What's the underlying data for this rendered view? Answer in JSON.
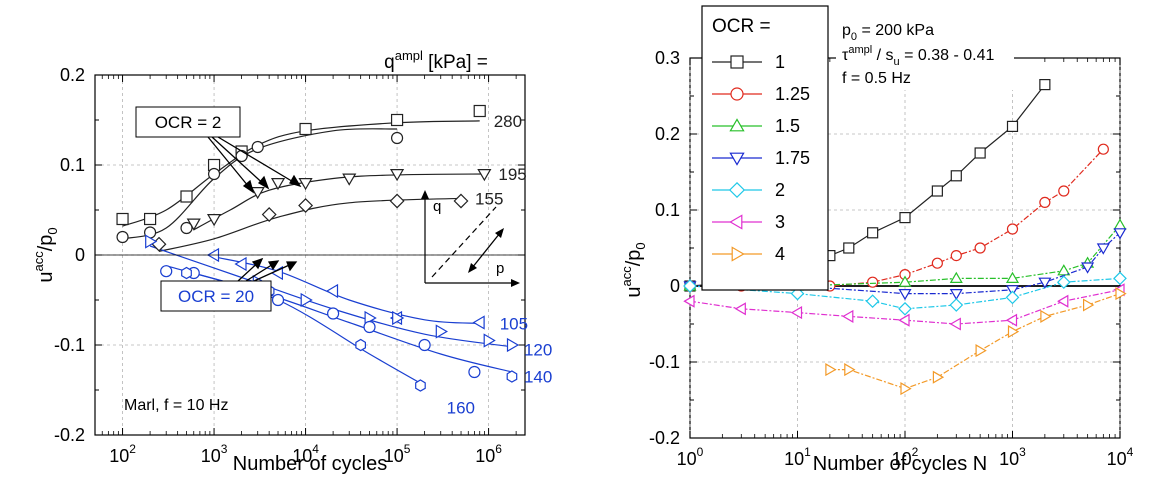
{
  "chart_data": [
    {
      "type": "scatter",
      "x_scale": "log",
      "xlim": [
        50,
        2500000
      ],
      "ylim": [
        -0.2,
        0.2
      ],
      "x_ticks": [
        100,
        1000,
        10000,
        100000,
        1000000
      ],
      "y_ticks": [
        -0.2,
        -0.1,
        0,
        0.1,
        0.2
      ],
      "x_tick_labels": [
        "10",
        "10",
        "10",
        "10",
        "10"
      ],
      "x_tick_exponents": [
        "2",
        "3",
        "4",
        "5",
        "6"
      ],
      "y_tick_labels": [
        "-0.2",
        "-0.1",
        "0",
        "0.1",
        "0.2"
      ],
      "grid": true,
      "xlabel": "Number of cycles",
      "ylabel_main": "u",
      "ylabel_sup": "acc",
      "ylabel_slash": "/p",
      "ylabel_sub": "0",
      "legend_title_main": "q",
      "legend_title_sup": "ampl",
      "legend_title_rest": " [kPa] =",
      "annotation_ocr2": "OCR = 2",
      "annotation_ocr20": "OCR = 20",
      "annotation_material": "Marl, f = 10 Hz",
      "inset_q": "q",
      "inset_p": "p",
      "series": [
        {
          "label": "280",
          "marker": "square",
          "color": "#222222",
          "label_color": "#222222",
          "points": [
            [
              100,
              0.04
            ],
            [
              200,
              0.04
            ],
            [
              500,
              0.065
            ],
            [
              1000,
              0.1
            ],
            [
              2000,
              0.115
            ],
            [
              10000,
              0.14
            ],
            [
              100000,
              0.15
            ],
            [
              800000,
              0.16
            ]
          ],
          "fit": [
            [
              100,
              0.032
            ],
            [
              300,
              0.05
            ],
            [
              1000,
              0.09
            ],
            [
              3000,
              0.122
            ],
            [
              10000,
              0.138
            ],
            [
              100000,
              0.147
            ],
            [
              800000,
              0.149
            ]
          ]
        },
        {
          "label": "195",
          "marker": "triangle-down",
          "color": "#222222",
          "label_color": "#222222",
          "points": [
            [
              600,
              0.035
            ],
            [
              1000,
              0.04
            ],
            [
              3000,
              0.07
            ],
            [
              5000,
              0.08
            ],
            [
              10000,
              0.08
            ],
            [
              30000,
              0.085
            ],
            [
              100000,
              0.09
            ],
            [
              900000,
              0.09
            ]
          ],
          "fit": [
            [
              600,
              0.028
            ],
            [
              1500,
              0.05
            ],
            [
              4000,
              0.072
            ],
            [
              20000,
              0.085
            ],
            [
              100000,
              0.089
            ],
            [
              900000,
              0.09
            ]
          ]
        },
        {
          "label": "155",
          "marker": "diamond",
          "color": "#222222",
          "label_color": "#222222",
          "points": [
            [
              250,
              0.012
            ],
            [
              4000,
              0.045
            ],
            [
              10000,
              0.055
            ],
            [
              100000,
              0.06
            ],
            [
              500000,
              0.06
            ]
          ],
          "fit": [
            [
              250,
              0.004
            ],
            [
              1000,
              0.018
            ],
            [
              5000,
              0.042
            ],
            [
              30000,
              0.058
            ],
            [
              500000,
              0.063
            ]
          ]
        },
        {
          "label": "",
          "marker": "circle",
          "color": "#222222",
          "label_color": "#222222",
          "points": [
            [
              100,
              0.02
            ],
            [
              200,
              0.025
            ],
            [
              500,
              0.03
            ],
            [
              1000,
              0.09
            ],
            [
              2000,
              0.11
            ],
            [
              3000,
              0.12
            ],
            [
              100000,
              0.13
            ]
          ],
          "fit": [
            [
              100,
              0.018
            ],
            [
              300,
              0.03
            ],
            [
              1000,
              0.085
            ],
            [
              3000,
              0.118
            ],
            [
              20000,
              0.138
            ],
            [
              100000,
              0.14
            ]
          ]
        },
        {
          "label": "105",
          "marker": "triangle-left",
          "color": "#1a3fd1",
          "label_color": "#1a3fd1",
          "points": [
            [
              1000,
              0
            ],
            [
              2000,
              -0.01
            ],
            [
              5000,
              -0.02
            ],
            [
              20000,
              -0.04
            ],
            [
              100000,
              -0.07
            ],
            [
              800000,
              -0.075
            ]
          ],
          "fit": [
            [
              1000,
              -0.002
            ],
            [
              5000,
              -0.018
            ],
            [
              30000,
              -0.05
            ],
            [
              200000,
              -0.072
            ],
            [
              800000,
              -0.076
            ]
          ]
        },
        {
          "label": "120",
          "marker": "triangle-right",
          "color": "#1a3fd1",
          "label_color": "#1a3fd1",
          "points": [
            [
              200,
              0.015
            ],
            [
              3000,
              -0.03
            ],
            [
              10000,
              -0.05
            ],
            [
              50000,
              -0.07
            ],
            [
              100000,
              -0.07
            ],
            [
              300000,
              -0.085
            ],
            [
              1000000,
              -0.095
            ],
            [
              1800000,
              -0.1
            ]
          ],
          "fit": [
            [
              200,
              0.01
            ],
            [
              2000,
              -0.025
            ],
            [
              20000,
              -0.06
            ],
            [
              200000,
              -0.088
            ],
            [
              1800000,
              -0.102
            ]
          ]
        },
        {
          "label": "140",
          "marker": "circle",
          "color": "#1a3fd1",
          "label_color": "#1a3fd1",
          "points": [
            [
              300,
              -0.018
            ],
            [
              600,
              -0.02
            ],
            [
              2000,
              -0.035
            ],
            [
              5000,
              -0.05
            ],
            [
              20000,
              -0.065
            ],
            [
              50000,
              -0.08
            ],
            [
              200000,
              -0.1
            ],
            [
              700000,
              -0.13
            ]
          ],
          "fit": [
            [
              300,
              -0.012
            ],
            [
              3000,
              -0.04
            ],
            [
              30000,
              -0.075
            ],
            [
              300000,
              -0.11
            ],
            [
              1800000,
              -0.13
            ]
          ]
        },
        {
          "label": "160",
          "marker": "hexagon",
          "color": "#1a3fd1",
          "label_color": "#1a3fd1",
          "points": [
            [
              500,
              -0.02
            ],
            [
              4000,
              -0.04
            ],
            [
              40000,
              -0.1
            ],
            [
              180000,
              -0.145
            ],
            [
              1800000,
              -0.135
            ]
          ],
          "fit": [
            [
              500,
              -0.018
            ],
            [
              5000,
              -0.05
            ],
            [
              50000,
              -0.11
            ],
            [
              200000,
              -0.145
            ]
          ]
        }
      ]
    },
    {
      "type": "line",
      "x_scale": "log",
      "xlim": [
        1,
        10000
      ],
      "ylim": [
        -0.2,
        0.3
      ],
      "x_ticks": [
        1,
        10,
        100,
        1000,
        10000
      ],
      "y_ticks": [
        -0.2,
        -0.1,
        0,
        0.1,
        0.2,
        0.3
      ],
      "x_tick_labels": [
        "10",
        "10",
        "10",
        "10",
        "10"
      ],
      "x_tick_exponents": [
        "0",
        "1",
        "2",
        "3",
        "4"
      ],
      "y_tick_labels": [
        "-0.2",
        "-0.1",
        "0",
        "0.1",
        "0.2",
        "0.3"
      ],
      "grid": true,
      "xlabel": "Number of cycles N",
      "ylabel_main": "u",
      "ylabel_sup": "acc",
      "ylabel_slash": "/p",
      "ylabel_sub": "0",
      "legend_title": "OCR =",
      "legend_placement": "top-left",
      "param_p0_main": "p",
      "param_p0_sub": "0",
      "param_p0_rest": " = 200 kPa",
      "param_tau_main": "τ",
      "param_tau_sup": "ampl",
      "param_tau_mid": " / s",
      "param_tau_sub": "u",
      "param_tau_rest": " = 0.38 - 0.41",
      "param_f": "f = 0.5 Hz",
      "series": [
        {
          "name": "1",
          "marker": "square",
          "color": "#222222",
          "points": [
            [
              1,
              0
            ],
            [
              3,
              0.005
            ],
            [
              10,
              0.02
            ],
            [
              20,
              0.04
            ],
            [
              30,
              0.05
            ],
            [
              50,
              0.07
            ],
            [
              100,
              0.09
            ],
            [
              200,
              0.125
            ],
            [
              300,
              0.145
            ],
            [
              500,
              0.175
            ],
            [
              1000,
              0.21
            ],
            [
              2000,
              0.265
            ]
          ]
        },
        {
          "name": "1.25",
          "marker": "circle",
          "color": "#e02a1e",
          "points": [
            [
              1,
              0
            ],
            [
              3,
              0
            ],
            [
              20,
              0
            ],
            [
              50,
              0.005
            ],
            [
              100,
              0.015
            ],
            [
              200,
              0.03
            ],
            [
              300,
              0.04
            ],
            [
              500,
              0.05
            ],
            [
              1000,
              0.075
            ],
            [
              2000,
              0.11
            ],
            [
              3000,
              0.125
            ],
            [
              7000,
              0.18
            ]
          ]
        },
        {
          "name": "1.5",
          "marker": "triangle-up",
          "color": "#28c02a",
          "points": [
            [
              1,
              0
            ],
            [
              10,
              0
            ],
            [
              100,
              0.005
            ],
            [
              300,
              0.01
            ],
            [
              1000,
              0.01
            ],
            [
              3000,
              0.02
            ],
            [
              5000,
              0.03
            ],
            [
              10000,
              0.08
            ]
          ]
        },
        {
          "name": "1.75",
          "marker": "triangle-down",
          "color": "#1a2ad1",
          "points": [
            [
              1,
              0
            ],
            [
              10,
              0
            ],
            [
              100,
              -0.01
            ],
            [
              300,
              -0.01
            ],
            [
              1000,
              -0.005
            ],
            [
              2000,
              0.005
            ],
            [
              5000,
              0.025
            ],
            [
              7000,
              0.05
            ],
            [
              10000,
              0.07
            ]
          ]
        },
        {
          "name": "2",
          "marker": "diamond",
          "color": "#1fc8e8",
          "points": [
            [
              1,
              0
            ],
            [
              10,
              -0.01
            ],
            [
              50,
              -0.02
            ],
            [
              100,
              -0.03
            ],
            [
              300,
              -0.025
            ],
            [
              1000,
              -0.015
            ],
            [
              3000,
              0.005
            ],
            [
              10000,
              0.01
            ]
          ]
        },
        {
          "name": "3",
          "marker": "triangle-left",
          "color": "#e030d0",
          "points": [
            [
              1,
              -0.02
            ],
            [
              3,
              -0.03
            ],
            [
              10,
              -0.035
            ],
            [
              30,
              -0.04
            ],
            [
              100,
              -0.045
            ],
            [
              300,
              -0.05
            ],
            [
              1000,
              -0.045
            ],
            [
              3000,
              -0.02
            ],
            [
              10000,
              -0.005
            ]
          ]
        },
        {
          "name": "4",
          "marker": "triangle-right",
          "color": "#f39a28",
          "points": [
            [
              20,
              -0.11
            ],
            [
              30,
              -0.11
            ],
            [
              100,
              -0.135
            ],
            [
              200,
              -0.12
            ],
            [
              500,
              -0.085
            ],
            [
              1000,
              -0.06
            ],
            [
              2000,
              -0.04
            ],
            [
              5000,
              -0.025
            ],
            [
              10000,
              -0.01
            ]
          ]
        }
      ]
    }
  ]
}
